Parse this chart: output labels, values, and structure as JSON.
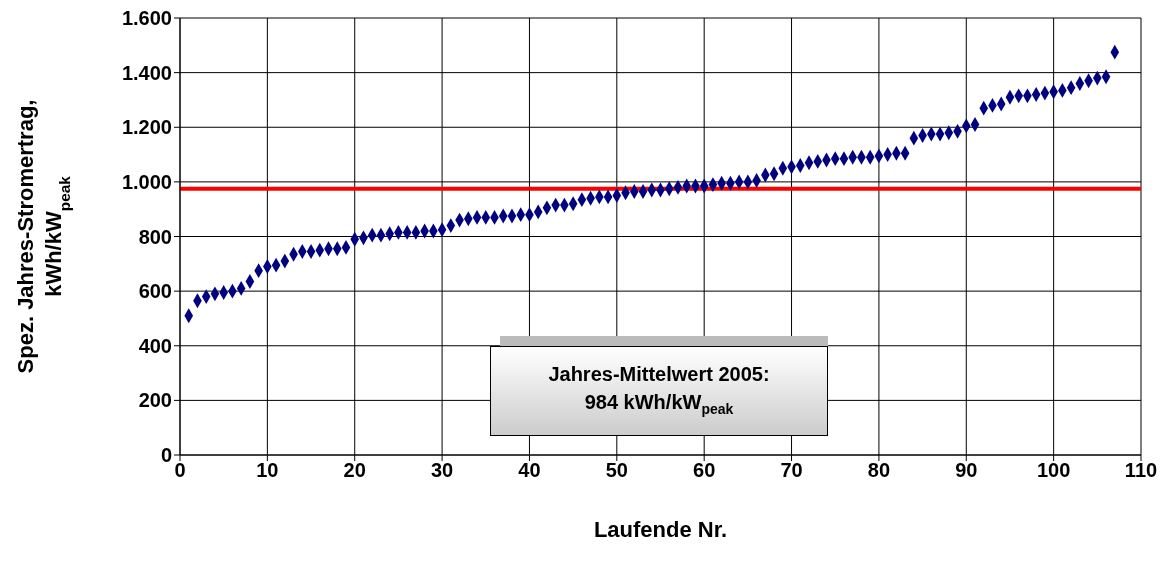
{
  "chart_data": {
    "type": "scatter",
    "xlabel": "Laufende Nr.",
    "ylabel": "Spez. Jahres-Stromertrag,\nkWh/kW$_{peak}$",
    "x": [
      1,
      2,
      3,
      4,
      5,
      6,
      7,
      8,
      9,
      10,
      11,
      12,
      13,
      14,
      15,
      16,
      17,
      18,
      19,
      20,
      21,
      22,
      23,
      24,
      25,
      26,
      27,
      28,
      29,
      30,
      31,
      32,
      33,
      34,
      35,
      36,
      37,
      38,
      39,
      40,
      41,
      42,
      43,
      44,
      45,
      46,
      47,
      48,
      49,
      50,
      51,
      52,
      53,
      54,
      55,
      56,
      57,
      58,
      59,
      60,
      61,
      62,
      63,
      64,
      65,
      66,
      67,
      68,
      69,
      70,
      71,
      72,
      73,
      74,
      75,
      76,
      77,
      78,
      79,
      80,
      81,
      82,
      83,
      84,
      85,
      86,
      87,
      88,
      89,
      90,
      91,
      92,
      93,
      94,
      95,
      96,
      97,
      98,
      99,
      100,
      101,
      102,
      103,
      104,
      105,
      106,
      107
    ],
    "series": [
      {
        "color": "#000080",
        "values": [
          510,
          565,
          580,
          590,
          595,
          600,
          610,
          635,
          675,
          690,
          695,
          710,
          735,
          745,
          745,
          750,
          755,
          755,
          760,
          790,
          795,
          805,
          805,
          810,
          815,
          815,
          815,
          820,
          820,
          825,
          840,
          860,
          865,
          870,
          870,
          870,
          875,
          875,
          880,
          880,
          890,
          905,
          915,
          915,
          920,
          935,
          940,
          945,
          945,
          950,
          960,
          965,
          965,
          970,
          970,
          975,
          980,
          985,
          985,
          985,
          990,
          995,
          995,
          1000,
          1000,
          1005,
          1025,
          1030,
          1050,
          1055,
          1060,
          1070,
          1075,
          1080,
          1085,
          1085,
          1090,
          1090,
          1090,
          1095,
          1100,
          1105,
          1105,
          1160,
          1170,
          1175,
          1175,
          1180,
          1185,
          1205,
          1210,
          1270,
          1280,
          1285,
          1310,
          1315,
          1315,
          1320,
          1325,
          1330,
          1335,
          1345,
          1360,
          1370,
          1380,
          1385,
          1475
        ]
      }
    ],
    "xlim": [
      0,
      110
    ],
    "xticks": [
      0,
      10,
      20,
      30,
      40,
      50,
      60,
      70,
      80,
      90,
      100,
      110
    ],
    "ylim": [
      0,
      1600
    ],
    "yticks": [
      0,
      200,
      400,
      600,
      800,
      {
        "value": 1000,
        "label": "1.000"
      },
      {
        "value": 1200,
        "label": "1.200"
      },
      {
        "value": 1400,
        "label": "1.400"
      },
      {
        "value": 1600,
        "label": "1.600"
      }
    ],
    "grid": true,
    "marker": "diamond",
    "ref_lines": [
      {
        "axis": "y",
        "value": 975,
        "color": "#ff0000"
      }
    ],
    "annotations": [
      "Jahres-Mittelwert 2005:\n984 kWh/kW$_{peak}$"
    ]
  }
}
